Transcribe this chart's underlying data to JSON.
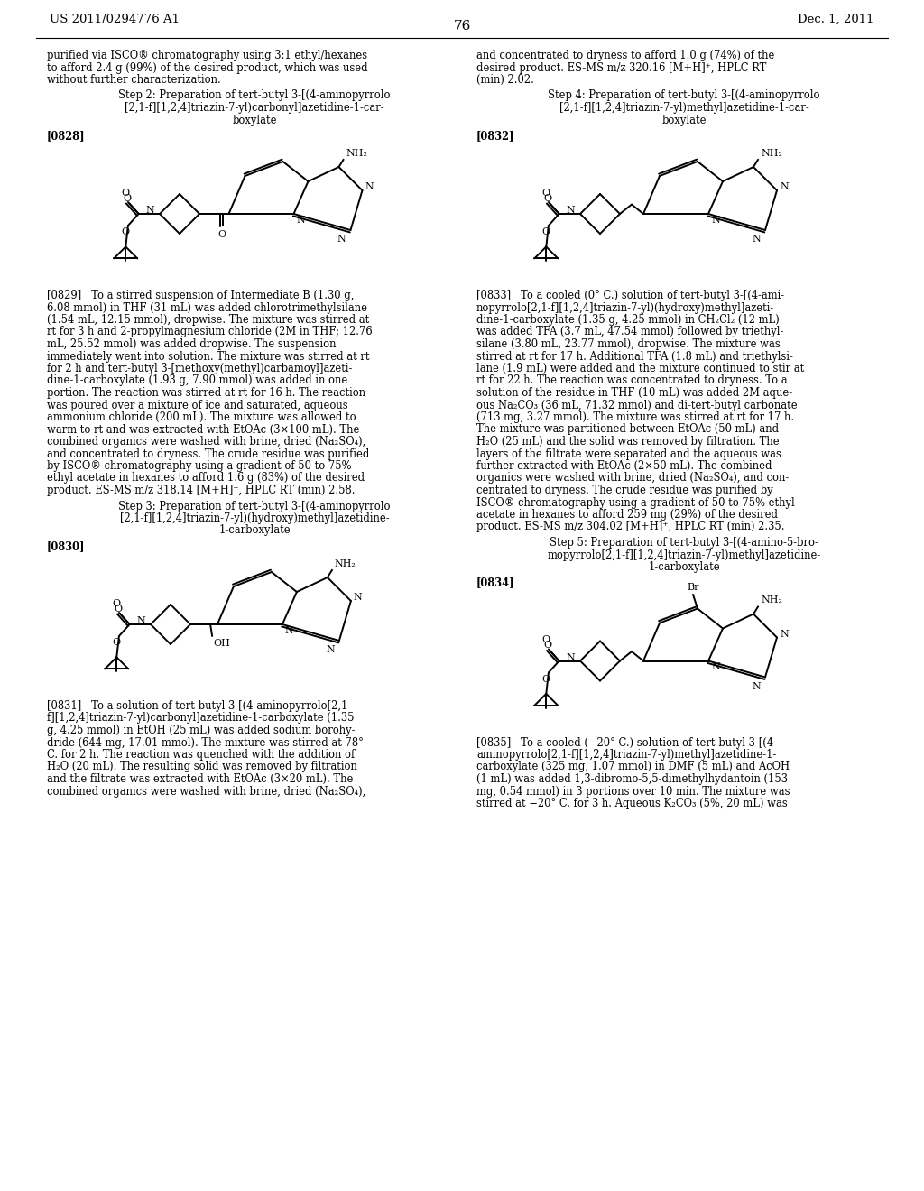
{
  "bg_color": "#ffffff",
  "header_left": "US 2011/0294776 A1",
  "header_right": "Dec. 1, 2011",
  "page_number": "76",
  "left_col": {
    "intro_text": "purified via ISCO® chromatography using 3:1 ethyl/hexanes\nto afford 2.4 g (99%) of the desired product, which was used\nwithout further characterization.",
    "step2_title": "Step 2: Preparation of tert-butyl 3-[(4-aminopyrrolo\n[2,1-f][1,2,4]triazin-7-yl)carbonyl]azetidine-1-car-\nboxylate",
    "label_0828": "[0828]",
    "para_0829": "[0829]   To a stirred suspension of Intermediate B (1.30 g,\n6.08 mmol) in THF (31 mL) was added chlorotrimethylsilane\n(1.54 mL, 12.15 mmol), dropwise. The mixture was stirred at\nrt for 3 h and 2-propylmagnesium chloride (2M in THF; 12.76\nmL, 25.52 mmol) was added dropwise. The suspension\nimmediately went into solution. The mixture was stirred at rt\nfor 2 h and tert-butyl 3-[methoxy(methyl)carbamoyl]azeti-\ndine-1-carboxylate (1.93 g, 7.90 mmol) was added in one\nportion. The reaction was stirred at rt for 16 h. The reaction\nwas poured over a mixture of ice and saturated, aqueous\nammonium chloride (200 mL). The mixture was allowed to\nwarm to rt and was extracted with EtOAc (3×100 mL). The\ncombined organics were washed with brine, dried (Na₂SO₄),\nand concentrated to dryness. The crude residue was purified\nby ISCO® chromatography using a gradient of 50 to 75%\nethyl acetate in hexanes to afford 1.6 g (83%) of the desired\nproduct. ES-MS m/z 318.14 [M+H]⁺, HPLC RT (min) 2.58.",
    "step3_title": "Step 3: Preparation of tert-butyl 3-[(4-aminopyrrolo\n[2,1-f][1,2,4]triazin-7-yl)(hydroxy)methyl]azetidine-\n1-carboxylate",
    "label_0830": "[0830]",
    "para_0831": "[0831]   To a solution of tert-butyl 3-[(4-aminopyrrolo[2,1-\nf][1,2,4]triazin-7-yl)carbonyl]azetidine-1-carboxylate (1.35\ng, 4.25 mmol) in EtOH (25 mL) was added sodium borohy-\ndride (644 mg, 17.01 mmol). The mixture was stirred at 78°\nC. for 2 h. The reaction was quenched with the addition of\nH₂O (20 mL). The resulting solid was removed by filtration\nand the filtrate was extracted with EtOAc (3×20 mL). The\ncombined organics were washed with brine, dried (Na₂SO₄),"
  },
  "right_col": {
    "intro_text": "and concentrated to dryness to afford 1.0 g (74%) of the\ndesired product. ES-MS m/z 320.16 [M+H]⁺, HPLC RT\n(min) 2.02.",
    "step4_title": "Step 4: Preparation of tert-butyl 3-[(4-aminopyrrolo\n[2,1-f][1,2,4]triazin-7-yl)methyl]azetidine-1-car-\nboxylate",
    "label_0832": "[0832]",
    "para_0833": "[0833]   To a cooled (0° C.) solution of tert-butyl 3-[(4-ami-\nnopyrrolo[2,1-f][1,2,4]triazin-7-yl)(hydroxy)methyl]azeti-\ndine-1-carboxylate (1.35 g, 4.25 mmol) in CH₂Cl₂ (12 mL)\nwas added TFA (3.7 mL, 47.54 mmol) followed by triethyl-\nsilane (3.80 mL, 23.77 mmol), dropwise. The mixture was\nstirred at rt for 17 h. Additional TFA (1.8 mL) and triethylsi-\nlane (1.9 mL) were added and the mixture continued to stir at\nrt for 22 h. The reaction was concentrated to dryness. To a\nsolution of the residue in THF (10 mL) was added 2M aque-\nous Na₂CO₃ (36 mL, 71.32 mmol) and di-tert-butyl carbonate\n(713 mg, 3.27 mmol). The mixture was stirred at rt for 17 h.\nThe mixture was partitioned between EtOAc (50 mL) and\nH₂O (25 mL) and the solid was removed by filtration. The\nlayers of the filtrate were separated and the aqueous was\nfurther extracted with EtOAc (2×50 mL). The combined\norganics were washed with brine, dried (Na₂SO₄), and con-\ncentrated to dryness. The crude residue was purified by\nISCO® chromatography using a gradient of 50 to 75% ethyl\nacetate in hexanes to afford 259 mg (29%) of the desired\nproduct. ES-MS m/z 304.02 [M+H]⁺, HPLC RT (min) 2.35.",
    "step5_title": "Step 5: Preparation of tert-butyl 3-[(4-amino-5-bro-\nmopyrrolo[2,1-f][1,2,4]triazin-7-yl)methyl]azetidine-\n1-carboxylate",
    "label_0834": "[0834]",
    "para_0835": "[0835]   To a cooled (−20° C.) solution of tert-butyl 3-[(4-\naminopyrrolo[2,1-f][1,2,4]triazin-7-yl)methyl]azetidine-1-\ncarboxylate (325 mg, 1.07 mmol) in DMF (5 mL) and AcOH\n(1 mL) was added 1,3-dibromo-5,5-dimethylhydantoin (153\nmg, 0.54 mmol) in 3 portions over 10 min. The mixture was\nstirred at −20° C. for 3 h. Aqueous K₂CO₃ (5%, 20 mL) was"
  }
}
